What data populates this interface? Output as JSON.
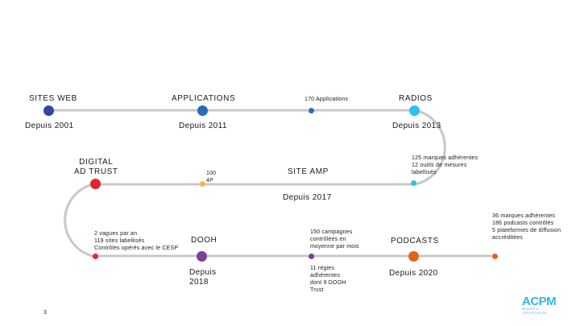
{
  "colors": {
    "track": "#c8c8c8",
    "sites_web": "#2e4a9e",
    "applications": "#2b6cb8",
    "applications_note": "#2b6cb8",
    "radios": "#29c3ec",
    "digital_ad_trust": "#e5242b",
    "app_note": "#f2b84b",
    "site_amp": "#29c3ec",
    "sites_note": "#e5242b",
    "dooh": "#7b3f98",
    "dooh_note": "#7b3f98",
    "podcasts": "#e2621b",
    "podcasts_note": "#e2621b"
  },
  "milestones": {
    "sites_web": {
      "label": "SITES WEB",
      "since": "Depuis 2001",
      "icon": "dot"
    },
    "applications": {
      "label": "APPLICATIONS",
      "since": "Depuis 2011",
      "icon": "dot"
    },
    "applications_count": {
      "note": "170 Applications",
      "icon": "dot"
    },
    "radios": {
      "label": "RADIOS",
      "since": "Depuis 2013",
      "icon": "dot"
    },
    "radios_count": {
      "note": "125 marques adhérentes\n12 outils de mesures\nlabellisés",
      "icon": "dot"
    },
    "site_amp": {
      "label": "SITE AMP",
      "since": "Depuis 2017"
    },
    "app_4p": {
      "note": "100\n4P",
      "icon": "dot"
    },
    "digital_ad_trust": {
      "label": "DIGITAL\nAD TRUST",
      "icon": "dot"
    },
    "digital_note": {
      "note": "2 vagues par an\n119 sites labellisés\nContrôles opérés avec le CESP",
      "icon": "dot"
    },
    "dooh": {
      "label": "DOOH",
      "since": "Depuis\n2018",
      "icon": "dot"
    },
    "dooh_campaigns": {
      "note": "150 campagnes\ncontrôlées en\nmoyenne par mois",
      "icon": "dot"
    },
    "dooh_regies": {
      "note": "11 régies\nadhérentes\ndont 9 DOOH\nTrust"
    },
    "podcasts": {
      "label": "PODCASTS",
      "since": "Depuis 2020",
      "icon": "dot"
    },
    "podcasts_count": {
      "note": "36 marques adhérentes\n186 podcasts contrôlés\n5 plateformes de diffusion\naccréditées",
      "icon": "dot"
    }
  },
  "page_number": "3",
  "logo": {
    "mark": "ACPM",
    "sub": "MESURE & CERTIFICATION"
  }
}
